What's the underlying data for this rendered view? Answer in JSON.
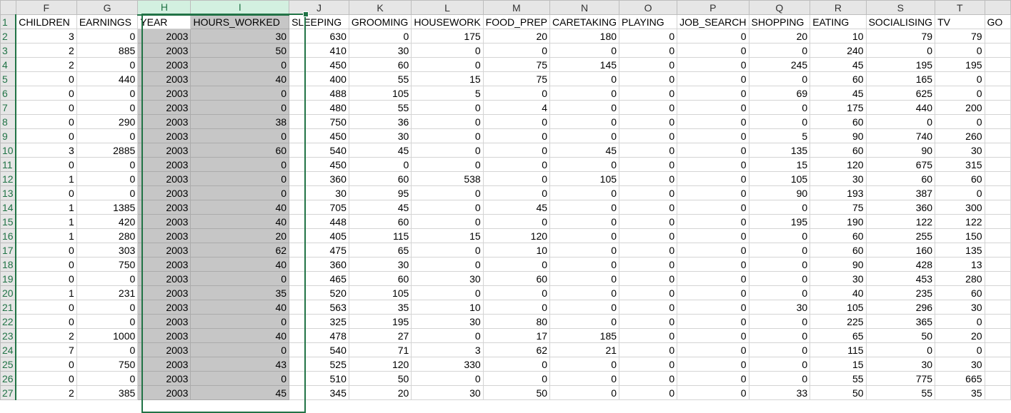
{
  "spreadsheet": {
    "column_letters": [
      "F",
      "G",
      "H",
      "I",
      "J",
      "K",
      "L",
      "M",
      "N",
      "O",
      "P",
      "Q",
      "R",
      "S",
      "T",
      ""
    ],
    "selected_columns": [
      "H",
      "I"
    ],
    "active_cell": "H1",
    "headers": [
      "CHILDREN",
      "EARNINGS",
      "YEAR",
      "HOURS_WORKED",
      "SLEEPING",
      "GROOMING",
      "HOUSEWORK",
      "FOOD_PREP",
      "CARETAKING",
      "PLAYING",
      "JOB_SEARCH",
      "SHOPPING",
      "EATING",
      "SOCIALISING",
      "TV",
      "GO"
    ],
    "rows": [
      {
        "n": "2",
        "v": [
          3,
          0,
          2003,
          30,
          630,
          0,
          175,
          20,
          180,
          0,
          0,
          20,
          10,
          79,
          79
        ]
      },
      {
        "n": "3",
        "v": [
          2,
          885,
          2003,
          50,
          410,
          30,
          0,
          0,
          0,
          0,
          0,
          0,
          240,
          0,
          0
        ]
      },
      {
        "n": "4",
        "v": [
          2,
          0,
          2003,
          0,
          450,
          60,
          0,
          75,
          145,
          0,
          0,
          245,
          45,
          195,
          195
        ]
      },
      {
        "n": "5",
        "v": [
          0,
          440,
          2003,
          40,
          400,
          55,
          15,
          75,
          0,
          0,
          0,
          0,
          60,
          165,
          0
        ]
      },
      {
        "n": "6",
        "v": [
          0,
          0,
          2003,
          0,
          488,
          105,
          5,
          0,
          0,
          0,
          0,
          69,
          45,
          625,
          0
        ]
      },
      {
        "n": "7",
        "v": [
          0,
          0,
          2003,
          0,
          480,
          55,
          0,
          4,
          0,
          0,
          0,
          0,
          175,
          440,
          200
        ]
      },
      {
        "n": "8",
        "v": [
          0,
          290,
          2003,
          38,
          750,
          36,
          0,
          0,
          0,
          0,
          0,
          0,
          60,
          0,
          0
        ]
      },
      {
        "n": "9",
        "v": [
          0,
          0,
          2003,
          0,
          450,
          30,
          0,
          0,
          0,
          0,
          0,
          5,
          90,
          740,
          260
        ]
      },
      {
        "n": "10",
        "v": [
          3,
          2885,
          2003,
          60,
          540,
          45,
          0,
          0,
          45,
          0,
          0,
          135,
          60,
          90,
          30
        ]
      },
      {
        "n": "11",
        "v": [
          0,
          0,
          2003,
          0,
          450,
          0,
          0,
          0,
          0,
          0,
          0,
          15,
          120,
          675,
          315
        ]
      },
      {
        "n": "12",
        "v": [
          1,
          0,
          2003,
          0,
          360,
          60,
          538,
          0,
          105,
          0,
          0,
          105,
          30,
          60,
          60
        ]
      },
      {
        "n": "13",
        "v": [
          0,
          0,
          2003,
          0,
          30,
          95,
          0,
          0,
          0,
          0,
          0,
          90,
          193,
          387,
          0
        ]
      },
      {
        "n": "14",
        "v": [
          1,
          1385,
          2003,
          40,
          705,
          45,
          0,
          45,
          0,
          0,
          0,
          0,
          75,
          360,
          300
        ]
      },
      {
        "n": "15",
        "v": [
          1,
          420,
          2003,
          40,
          448,
          60,
          0,
          0,
          0,
          0,
          0,
          195,
          190,
          122,
          122
        ]
      },
      {
        "n": "16",
        "v": [
          1,
          280,
          2003,
          20,
          405,
          115,
          15,
          120,
          0,
          0,
          0,
          0,
          60,
          255,
          150
        ]
      },
      {
        "n": "17",
        "v": [
          0,
          303,
          2003,
          62,
          475,
          65,
          0,
          10,
          0,
          0,
          0,
          0,
          60,
          160,
          135
        ]
      },
      {
        "n": "18",
        "v": [
          0,
          750,
          2003,
          40,
          360,
          30,
          0,
          0,
          0,
          0,
          0,
          0,
          90,
          428,
          13
        ]
      },
      {
        "n": "19",
        "v": [
          0,
          0,
          2003,
          0,
          465,
          60,
          30,
          60,
          0,
          0,
          0,
          0,
          30,
          453,
          280
        ]
      },
      {
        "n": "20",
        "v": [
          1,
          231,
          2003,
          35,
          520,
          105,
          0,
          0,
          0,
          0,
          0,
          0,
          40,
          235,
          60
        ]
      },
      {
        "n": "21",
        "v": [
          0,
          0,
          2003,
          40,
          563,
          35,
          10,
          0,
          0,
          0,
          0,
          30,
          105,
          296,
          30
        ]
      },
      {
        "n": "22",
        "v": [
          0,
          0,
          2003,
          0,
          325,
          195,
          30,
          80,
          0,
          0,
          0,
          0,
          225,
          365,
          0
        ]
      },
      {
        "n": "23",
        "v": [
          2,
          1000,
          2003,
          40,
          478,
          27,
          0,
          17,
          185,
          0,
          0,
          0,
          65,
          50,
          20
        ]
      },
      {
        "n": "24",
        "v": [
          7,
          0,
          2003,
          0,
          540,
          71,
          3,
          62,
          21,
          0,
          0,
          0,
          115,
          0,
          0
        ]
      },
      {
        "n": "25",
        "v": [
          0,
          750,
          2003,
          43,
          525,
          120,
          330,
          0,
          0,
          0,
          0,
          0,
          15,
          30,
          30
        ]
      },
      {
        "n": "26",
        "v": [
          0,
          0,
          2003,
          0,
          510,
          50,
          0,
          0,
          0,
          0,
          0,
          0,
          55,
          775,
          665
        ]
      },
      {
        "n": "27",
        "v": [
          2,
          385,
          2003,
          45,
          345,
          20,
          30,
          50,
          0,
          0,
          0,
          33,
          50,
          55,
          35
        ]
      }
    ]
  }
}
